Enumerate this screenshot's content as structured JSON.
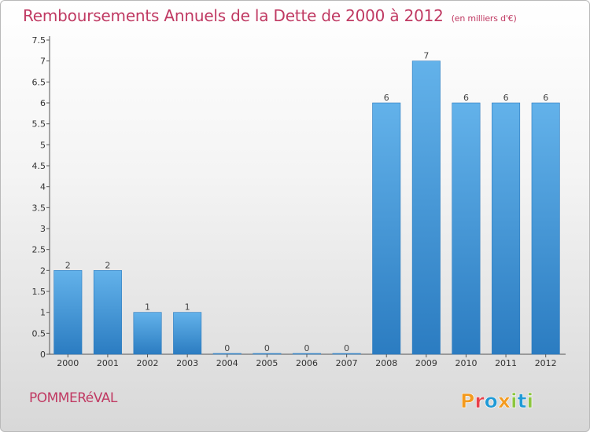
{
  "header": {
    "title": "Remboursements Annuels de la Dette de 2000 à 2012",
    "subtitle": "(en milliers d'€)"
  },
  "footer": {
    "commune": "POMMERéVAL",
    "logo_text": "Proxiti"
  },
  "colors": {
    "accent": "#c03a63",
    "bar_top": "#63b2ea",
    "bar_bottom": "#2b7cc1",
    "logo_letters": [
      "#f39a1e",
      "#e8414a",
      "#1f9ad6",
      "#f39a1e",
      "#8cc63f",
      "#1f9ad6",
      "#8cc63f"
    ]
  },
  "chart_data": {
    "type": "bar",
    "title": "Remboursements Annuels de la Dette de 2000 à 2012",
    "subtitle": "(en milliers d'€)",
    "xlabel": "",
    "ylabel": "",
    "categories": [
      "2000",
      "2001",
      "2002",
      "2003",
      "2004",
      "2005",
      "2006",
      "2007",
      "2008",
      "2009",
      "2010",
      "2011",
      "2012"
    ],
    "values": [
      2,
      2,
      1,
      1,
      0,
      0,
      0,
      0,
      6,
      7,
      6,
      6,
      6
    ],
    "value_labels": [
      "2",
      "2",
      "1",
      "1",
      "0",
      "0",
      "0",
      "0",
      "6",
      "7",
      "6",
      "6",
      "6"
    ],
    "ylim": [
      0,
      7.5
    ],
    "yticks": [
      0,
      0.5,
      1,
      1.5,
      2,
      2.5,
      3,
      3.5,
      4,
      4.5,
      5,
      5.5,
      6,
      6.5,
      7,
      7.5
    ],
    "ytick_labels": [
      "0",
      "0.5",
      "1",
      "1.5",
      "2",
      "2.5",
      "3",
      "3.5",
      "4",
      "4.5",
      "5",
      "5.5",
      "6",
      "6.5",
      "7",
      "7.5"
    ],
    "grid": false,
    "legend": "none"
  }
}
